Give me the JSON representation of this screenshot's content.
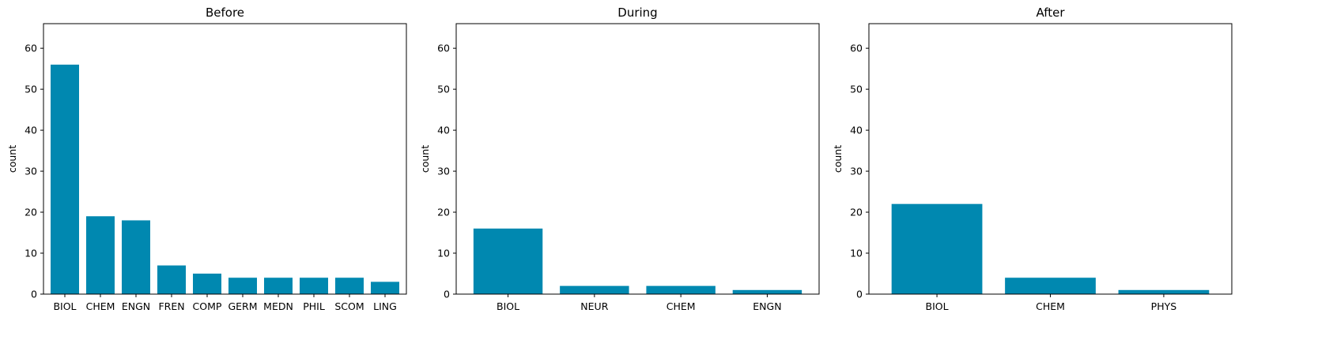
{
  "figure": {
    "bar_color": "#0088b0",
    "axis_color": "#000000",
    "background": "#ffffff"
  },
  "chart_data": [
    {
      "type": "bar",
      "title": "Before",
      "ylabel": "count",
      "xlabel": "",
      "ylim": [
        0,
        66
      ],
      "yticks": [
        0,
        10,
        20,
        30,
        40,
        50,
        60
      ],
      "grid": false,
      "categories": [
        "BIOL",
        "CHEM",
        "ENGN",
        "FREN",
        "COMP",
        "GERM",
        "MEDN",
        "PHIL",
        "SCOM",
        "LING"
      ],
      "values": [
        56,
        19,
        18,
        7,
        5,
        4,
        4,
        4,
        4,
        3
      ]
    },
    {
      "type": "bar",
      "title": "During",
      "ylabel": "count",
      "xlabel": "",
      "ylim": [
        0,
        66
      ],
      "yticks": [
        0,
        10,
        20,
        30,
        40,
        50,
        60
      ],
      "grid": false,
      "categories": [
        "BIOL",
        "NEUR",
        "CHEM",
        "ENGN"
      ],
      "values": [
        16,
        2,
        2,
        1
      ]
    },
    {
      "type": "bar",
      "title": "After",
      "ylabel": "count",
      "xlabel": "",
      "ylim": [
        0,
        66
      ],
      "yticks": [
        0,
        10,
        20,
        30,
        40,
        50,
        60
      ],
      "grid": false,
      "categories": [
        "BIOL",
        "CHEM",
        "PHYS"
      ],
      "values": [
        22,
        4,
        1
      ]
    }
  ]
}
